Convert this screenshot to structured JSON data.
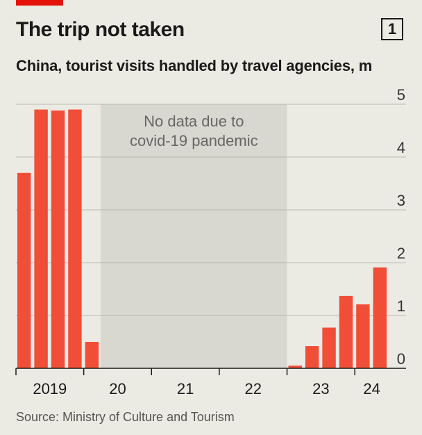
{
  "header": {
    "title": "The trip not taken",
    "badge": "1",
    "subtitle": "China, tourist visits handled by travel agencies, m"
  },
  "source": "Source: Ministry of Culture and Tourism",
  "colors": {
    "bar": "#f04e37",
    "shade": "#d9d8d0",
    "grid": "#b8b7b0",
    "brand_red": "#e3120b"
  },
  "chart_data": {
    "type": "bar",
    "title": "The trip not taken",
    "subtitle": "China, tourist visits handled by travel agencies, m",
    "xlabel": "",
    "ylabel": "",
    "ylim": [
      0,
      5
    ],
    "y_ticks": [
      0,
      1,
      2,
      3,
      4,
      5
    ],
    "y_axis_position": "right",
    "grid": true,
    "categories": [
      "2019 Q1",
      "2019 Q2",
      "2019 Q3",
      "2019 Q4",
      "2020 Q1",
      "2020 Q2",
      "2020 Q3",
      "2020 Q4",
      "2021 Q1",
      "2021 Q2",
      "2021 Q3",
      "2021 Q4",
      "2022 Q1",
      "2022 Q2",
      "2022 Q3",
      "2022 Q4",
      "2023 Q1",
      "2023 Q2",
      "2023 Q3",
      "2023 Q4",
      "2024 Q1",
      "2024 Q2"
    ],
    "values": [
      3.7,
      4.9,
      4.88,
      4.9,
      0.5,
      null,
      null,
      null,
      null,
      null,
      null,
      null,
      null,
      null,
      null,
      null,
      0.05,
      0.42,
      0.77,
      1.37,
      1.21,
      1.91
    ],
    "x_year_labels": [
      "2019",
      "20",
      "21",
      "22",
      "23",
      "24"
    ],
    "annotation": {
      "text_line1": "No data due to",
      "text_line2": "covid-19 pandemic",
      "span": [
        "2020 Q2",
        "2022 Q4"
      ]
    }
  }
}
